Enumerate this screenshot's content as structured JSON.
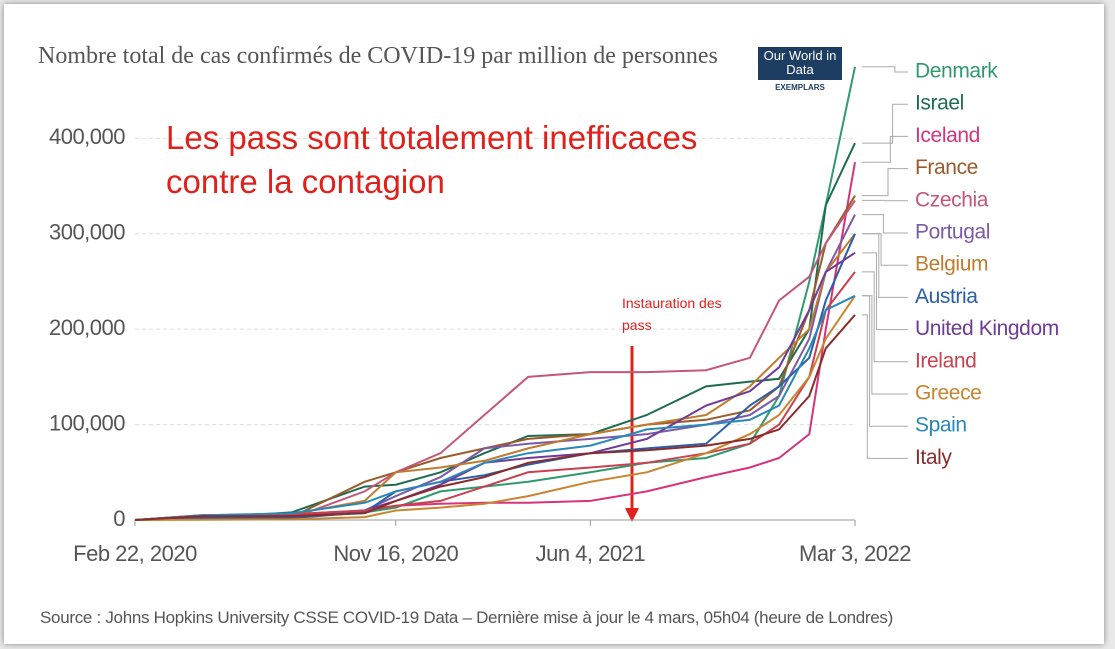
{
  "chart_data": {
    "type": "line",
    "title": "Nombre total de cas confirmés de COVID-19 par million de personnes",
    "logo": "Our World in Data",
    "logo_subtitle": "EXEMPLARS",
    "annotations": [
      "Les pass sont totalement inefficaces contre la contagion",
      "Instauration des pass"
    ],
    "source": "Source : Johns Hopkins University CSSE COVID-19 Data – Dernière mise à jour le 4 mars, 05h04 (heure de Londres)",
    "x": [
      "2020-02-22",
      "2020-05-01",
      "2020-08-01",
      "2020-10-15",
      "2020-11-16",
      "2021-01-01",
      "2021-02-15",
      "2021-04-01",
      "2021-06-04",
      "2021-08-01",
      "2021-10-01",
      "2021-11-15",
      "2021-12-15",
      "2022-01-15",
      "2022-02-01",
      "2022-03-03"
    ],
    "xlim": [
      "2020-02-22",
      "2022-03-03"
    ],
    "xticks": [
      {
        "value": "2020-02-22",
        "label": "Feb 22, 2020"
      },
      {
        "value": "2020-11-16",
        "label": "Nov 16, 2020"
      },
      {
        "value": "2021-06-04",
        "label": "Jun 4, 2021"
      },
      {
        "value": "2022-03-03",
        "label": "Mar 3, 2022"
      }
    ],
    "ylim": [
      0,
      480000
    ],
    "yticks": [
      0,
      {
        "value": 100000,
        "label": "100,000"
      },
      {
        "value": 200000,
        "label": "200,000"
      },
      {
        "value": 300000,
        "label": "300,000"
      },
      {
        "value": 400000,
        "label": "400,000"
      }
    ],
    "grid": true,
    "series": [
      {
        "name": "Denmark",
        "color": "#2f9a6e",
        "values": [
          0,
          2000,
          3000,
          8000,
          13000,
          30000,
          35000,
          40000,
          50000,
          60000,
          65000,
          80000,
          130000,
          250000,
          330000,
          475000
        ]
      },
      {
        "name": "Israel",
        "color": "#1f6b52",
        "values": [
          0,
          2000,
          8000,
          35000,
          37000,
          50000,
          70000,
          88000,
          90000,
          110000,
          140000,
          145000,
          148000,
          200000,
          330000,
          395000
        ]
      },
      {
        "name": "Iceland",
        "color": "#d6337a",
        "values": [
          0,
          5000,
          6000,
          10000,
          15000,
          17000,
          18000,
          18000,
          20000,
          30000,
          45000,
          55000,
          65000,
          90000,
          200000,
          375000
        ]
      },
      {
        "name": "France",
        "color": "#9a5a2a",
        "values": [
          0,
          2000,
          3000,
          40000,
          50000,
          65000,
          75000,
          85000,
          90000,
          100000,
          105000,
          115000,
          140000,
          220000,
          290000,
          340000
        ]
      },
      {
        "name": "Czechia",
        "color": "#c4567c",
        "values": [
          0,
          1000,
          2000,
          30000,
          50000,
          70000,
          110000,
          150000,
          155000,
          155000,
          157000,
          170000,
          230000,
          255000,
          290000,
          335000
        ]
      },
      {
        "name": "Portugal",
        "color": "#7d5aa6",
        "values": [
          0,
          3000,
          5000,
          10000,
          25000,
          45000,
          75000,
          80000,
          85000,
          90000,
          100000,
          110000,
          130000,
          190000,
          260000,
          320000
        ]
      },
      {
        "name": "Belgium",
        "color": "#c07b2e",
        "values": [
          0,
          5000,
          6000,
          20000,
          50000,
          55000,
          62000,
          75000,
          90000,
          100000,
          110000,
          140000,
          170000,
          200000,
          260000,
          300000
        ]
      },
      {
        "name": "Austria",
        "color": "#2a5ea8",
        "values": [
          0,
          2000,
          2000,
          8000,
          30000,
          40000,
          47000,
          58000,
          70000,
          75000,
          80000,
          120000,
          140000,
          170000,
          230000,
          300000
        ]
      },
      {
        "name": "United Kingdom",
        "color": "#6f3a98",
        "values": [
          0,
          4000,
          5000,
          10000,
          20000,
          37000,
          60000,
          65000,
          70000,
          85000,
          120000,
          135000,
          160000,
          220000,
          260000,
          280000
        ]
      },
      {
        "name": "Ireland",
        "color": "#c8414f",
        "values": [
          0,
          5000,
          6000,
          10000,
          15000,
          20000,
          35000,
          50000,
          55000,
          60000,
          70000,
          80000,
          100000,
          150000,
          220000,
          260000
        ]
      },
      {
        "name": "Greece",
        "color": "#c8852f",
        "values": [
          0,
          300,
          600,
          3000,
          10000,
          13000,
          17000,
          25000,
          40000,
          50000,
          70000,
          90000,
          110000,
          150000,
          190000,
          235000
        ]
      },
      {
        "name": "Spain",
        "color": "#2a88b8",
        "values": [
          0,
          5000,
          7000,
          18000,
          30000,
          40000,
          60000,
          70000,
          78000,
          95000,
          100000,
          105000,
          120000,
          180000,
          220000,
          235000
        ]
      },
      {
        "name": "Italy",
        "color": "#8b2c2c",
        "values": [
          0,
          4000,
          4000,
          7000,
          20000,
          35000,
          45000,
          60000,
          70000,
          73000,
          78000,
          85000,
          95000,
          130000,
          180000,
          215000
        ]
      }
    ]
  }
}
